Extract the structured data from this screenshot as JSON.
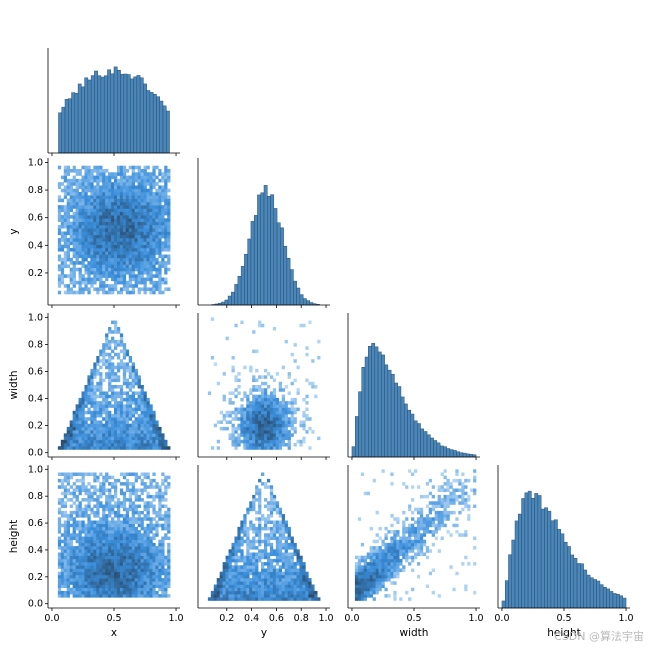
{
  "watermark": "CSDN @算法宇宙",
  "chart_data": {
    "type": "pairplot-corner",
    "variables": [
      "x",
      "y",
      "width",
      "height"
    ],
    "diag_kind": "hist",
    "offdiag_kind": "hist2d",
    "colors": {
      "bar_fill": "#4a86b8",
      "bar_edge": "#274e73",
      "heat_light": "#b9d9f5",
      "heat_mid": "#3b8fdc",
      "heat_dark": "#27435f"
    },
    "axes": {
      "x": {
        "range": [
          0.0,
          1.0
        ],
        "ticks": [
          "0.0",
          "0.5",
          "1.0"
        ]
      },
      "y": {
        "range": [
          0.0,
          1.0
        ],
        "ticks": [
          "0.2",
          "0.4",
          "0.6",
          "0.8",
          "1.0"
        ]
      },
      "width": {
        "range": [
          0.0,
          1.0
        ],
        "ticks": [
          "0.0",
          "0.2",
          "0.4",
          "0.6",
          "0.8",
          "1.0"
        ],
        "xticks": [
          "0.0",
          "0.5",
          "1.0"
        ]
      },
      "height": {
        "range": [
          0.0,
          1.0
        ],
        "ticks": [
          "0.0",
          "0.2",
          "0.4",
          "0.6",
          "0.8",
          "1.0"
        ],
        "xticks": [
          "0.0",
          "0.5",
          "1.0"
        ]
      }
    },
    "marginals": {
      "x": {
        "shape": "hump",
        "range": [
          0.04,
          0.96
        ],
        "peak": 0.5
      },
      "y": {
        "shape": "normal",
        "mean": 0.52,
        "sd": 0.13
      },
      "width": {
        "shape": "right-skewed",
        "mode": 0.18
      },
      "height": {
        "shape": "right-skewed",
        "mode": 0.24
      }
    },
    "pairs": [
      {
        "xvar": "x",
        "yvar": "y",
        "pattern": "rectangle",
        "density_center": [
          0.55,
          0.52
        ]
      },
      {
        "xvar": "x",
        "yvar": "width",
        "pattern": "triangle",
        "apex": [
          0.5,
          1.0
        ],
        "base": [
          0.05,
          0.95
        ]
      },
      {
        "xvar": "y",
        "yvar": "width",
        "pattern": "cloud",
        "density_center": [
          0.5,
          0.2
        ]
      },
      {
        "xvar": "x",
        "yvar": "height",
        "pattern": "rectangle",
        "density_center": [
          0.5,
          0.25
        ]
      },
      {
        "xvar": "y",
        "yvar": "height",
        "pattern": "triangle",
        "apex": [
          0.5,
          1.0
        ],
        "base": [
          0.05,
          0.95
        ]
      },
      {
        "xvar": "width",
        "yvar": "height",
        "pattern": "positive-correlation",
        "density_center": [
          0.15,
          0.2
        ]
      }
    ]
  }
}
